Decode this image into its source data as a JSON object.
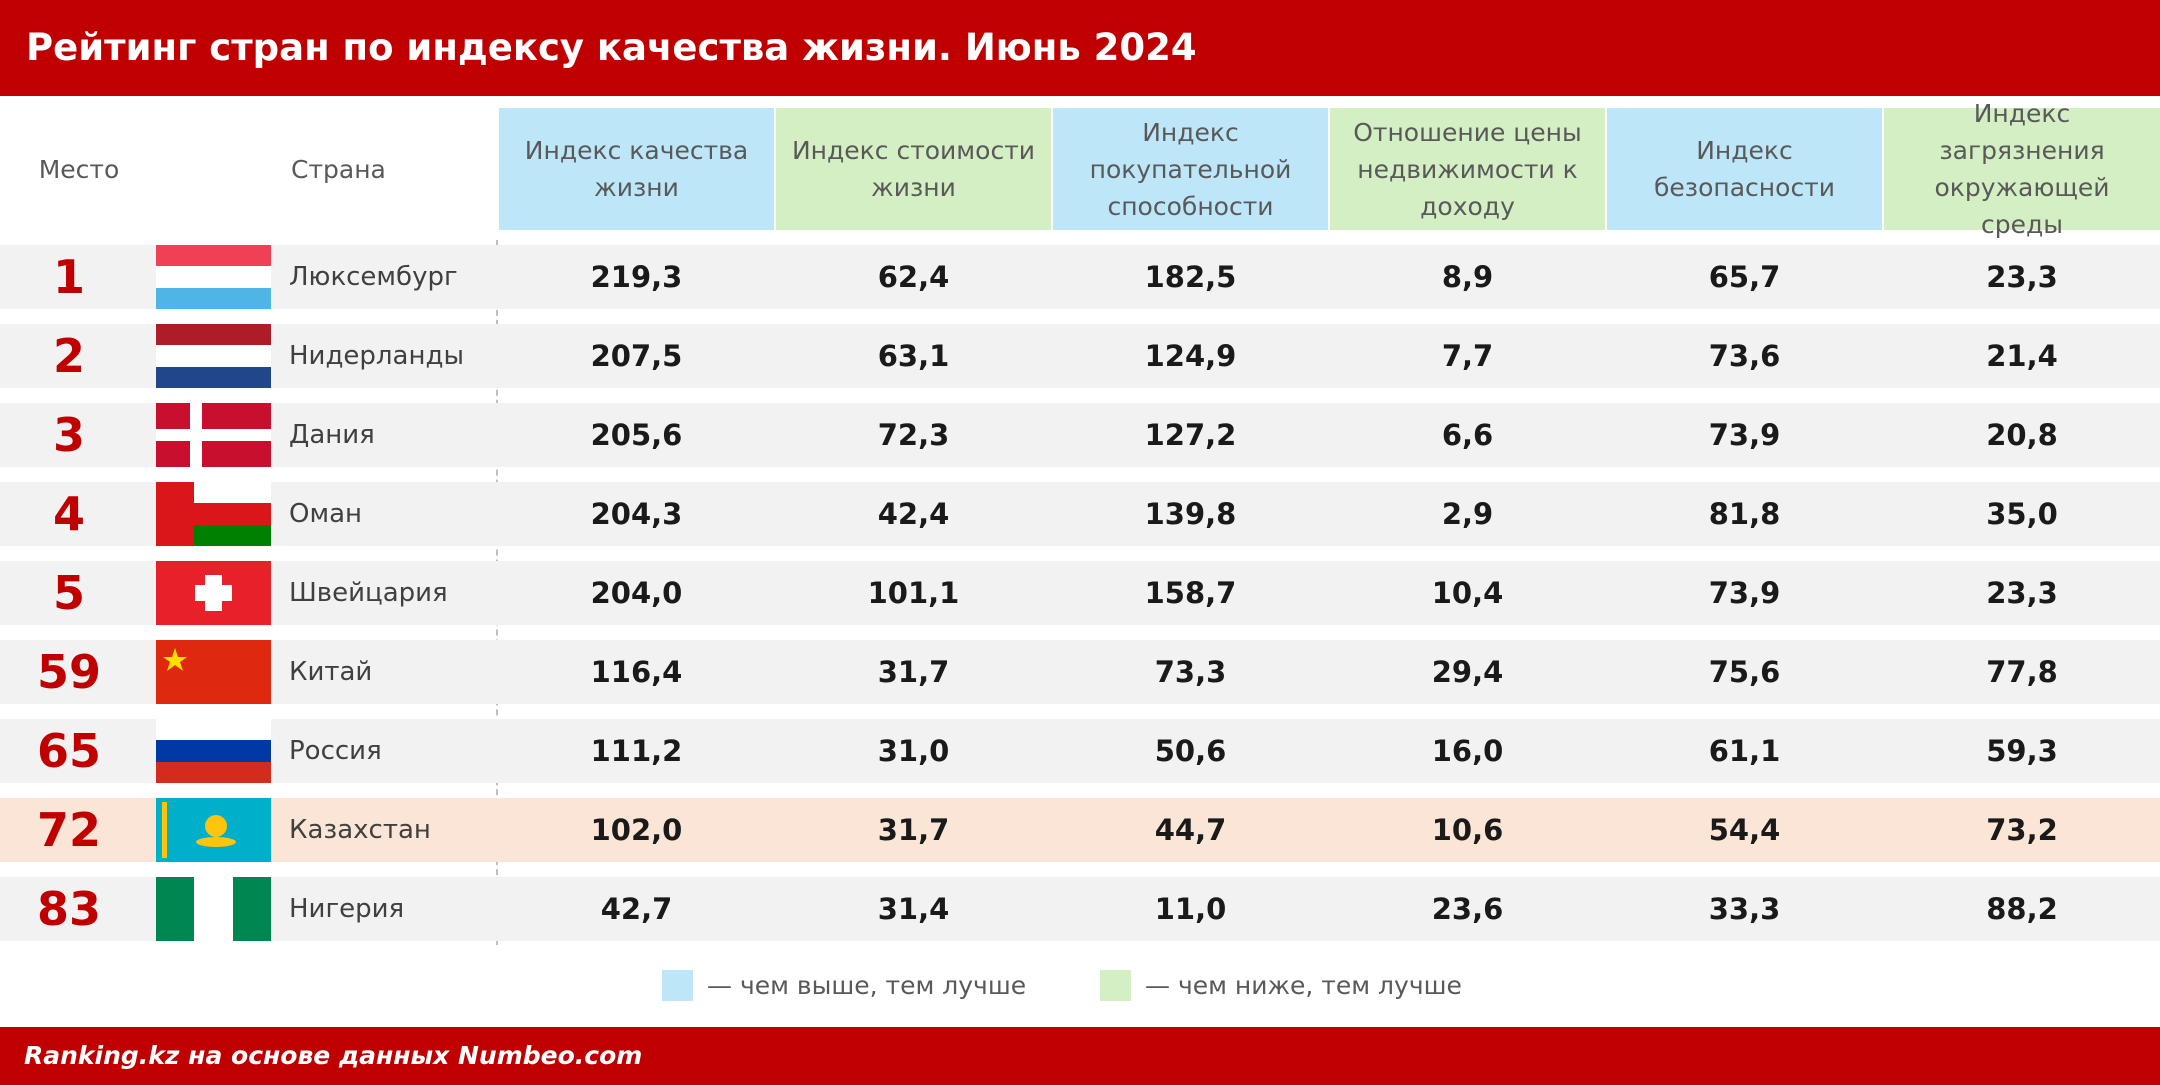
{
  "header": {
    "title": "Рейтинг стран по индексу качества жизни. Июнь 2024"
  },
  "table": {
    "columns": [
      "Место",
      "Страна",
      "Индекс качества жизни",
      "Индекс стоимости жизни",
      "Индекс покупательной способности",
      "Отношение цены недвижимости к доходу",
      "Индекс безопасности",
      "Индекс загрязнения окружающей среды"
    ],
    "column_colors": [
      null,
      null,
      "#bde6f8",
      "#d5efc4",
      "#bde6f8",
      "#d5efc4",
      "#bde6f8",
      "#d5efc4"
    ],
    "rows": [
      [
        "1",
        "Люксембург",
        "219,3",
        "62,4",
        "182,5",
        "8,9",
        "65,7",
        "23,3"
      ],
      [
        "2",
        "Нидерланды",
        "207,5",
        "63,1",
        "124,9",
        "7,7",
        "73,6",
        "21,4"
      ],
      [
        "3",
        "Дания",
        "205,6",
        "72,3",
        "127,2",
        "6,6",
        "73,9",
        "20,8"
      ],
      [
        "4",
        "Оман",
        "204,3",
        "42,4",
        "139,8",
        "2,9",
        "81,8",
        "35,0"
      ],
      [
        "5",
        "Швейцария",
        "204,0",
        "101,1",
        "158,7",
        "10,4",
        "73,9",
        "23,3"
      ],
      [
        "59",
        "Китай",
        "116,4",
        "31,7",
        "73,3",
        "29,4",
        "75,6",
        "77,8"
      ],
      [
        "65",
        "Россия",
        "111,2",
        "31,0",
        "50,6",
        "16,0",
        "61,1",
        "59,3"
      ],
      [
        "72",
        "Казахстан",
        "102,0",
        "31,7",
        "44,7",
        "10,6",
        "54,4",
        "73,2"
      ],
      [
        "83",
        "Нигерия",
        "42,7",
        "31,4",
        "11,0",
        "23,6",
        "33,3",
        "88,2"
      ]
    ],
    "highlight_row": 7
  },
  "legend": [
    {
      "color": "#bde6f8",
      "label": "— чем выше, тем лучше"
    },
    {
      "color": "#d5efc4",
      "label": "— чем ниже, тем лучше"
    }
  ],
  "footer": {
    "source": "Ranking.kz на основе данных Numbeo.com"
  }
}
